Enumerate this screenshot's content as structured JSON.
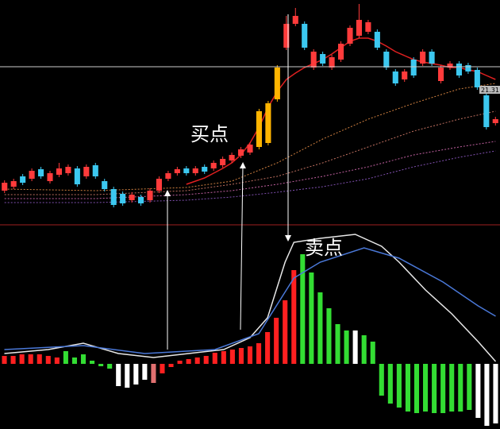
{
  "chart_data": [
    {
      "type": "candlestick",
      "annotations": [
        "买点",
        "21.31"
      ],
      "xlim": [
        -0.5,
        54.5
      ],
      "ylim": [
        0,
        280
      ],
      "open": [
        40,
        45,
        58,
        55,
        67,
        52,
        60,
        62,
        68,
        58,
        72,
        52,
        42,
        36,
        28,
        32,
        28,
        40,
        55,
        62,
        68,
        62,
        70,
        68,
        72,
        78,
        84,
        88,
        95,
        100,
        155,
        220,
        250,
        250,
        195,
        212,
        195,
        205,
        225,
        235,
        240,
        240,
        215,
        190,
        180,
        205,
        200,
        215,
        178,
        195,
        200,
        198,
        192,
        160,
        125
      ],
      "high": [
        53,
        55,
        61,
        68,
        70,
        65,
        75,
        73,
        71,
        73,
        75,
        55,
        45,
        39,
        38,
        35,
        43,
        58,
        65,
        70,
        71,
        71,
        73,
        78,
        83,
        88,
        95,
        101,
        143,
        153,
        198,
        260,
        270,
        253,
        218,
        215,
        211,
        228,
        248,
        275,
        255,
        243,
        218,
        193,
        193,
        208,
        218,
        218,
        198,
        203,
        203,
        201,
        195,
        163,
        133
      ],
      "low": [
        37,
        42,
        47,
        52,
        55,
        49,
        57,
        59,
        45,
        55,
        55,
        39,
        19,
        21,
        25,
        21,
        25,
        37,
        52,
        59,
        59,
        59,
        61,
        65,
        69,
        75,
        81,
        85,
        92,
        97,
        152,
        217,
        247,
        217,
        192,
        197,
        192,
        202,
        222,
        232,
        237,
        217,
        192,
        172,
        177,
        182,
        197,
        197,
        175,
        192,
        182,
        187,
        167,
        117,
        122
      ],
      "close": [
        50,
        52,
        50,
        65,
        58,
        62,
        68,
        70,
        48,
        70,
        58,
        42,
        22,
        24,
        35,
        24,
        40,
        55,
        62,
        67,
        62,
        68,
        64,
        75,
        80,
        85,
        92,
        98,
        140,
        150,
        195,
        250,
        260,
        220,
        215,
        200,
        208,
        225,
        245,
        255,
        252,
        220,
        195,
        175,
        190,
        185,
        215,
        200,
        195,
        200,
        185,
        190,
        170,
        120,
        130
      ],
      "colors": [
        "#ff3b3b",
        "#ff3b3b",
        "#3cc8f0",
        "#ff3b3b",
        "#3cc8f0",
        "#ff3b3b",
        "#ff3b3b",
        "#ff3b3b",
        "#3cc8f0",
        "#ff3b3b",
        "#3cc8f0",
        "#3cc8f0",
        "#3cc8f0",
        "#3cc8f0",
        "#ff3b3b",
        "#3cc8f0",
        "#ff3b3b",
        "#ff3b3b",
        "#ff3b3b",
        "#ff3b3b",
        "#3cc8f0",
        "#ff3b3b",
        "#3cc8f0",
        "#ff3b3b",
        "#ff3b3b",
        "#ff3b3b",
        "#ff3b3b",
        "#ff3b3b",
        "#ffb400",
        "#ffb400",
        "#ffb400",
        "#ff3b3b",
        "#ff3b3b",
        "#3cc8f0",
        "#ff3b3b",
        "#3cc8f0",
        "#ff3b3b",
        "#ff3b3b",
        "#ff3b3b",
        "#ff3b3b",
        "#ff3b3b",
        "#3cc8f0",
        "#3cc8f0",
        "#3cc8f0",
        "#ff3b3b",
        "#3cc8f0",
        "#ff3b3b",
        "#3cc8f0",
        "#ff3b3b",
        "#ff3b3b",
        "#3cc8f0",
        "#3cc8f0",
        "#3cc8f0",
        "#3cc8f0",
        "#ff3b3b"
      ],
      "lines": [
        {
          "color": "#e02020",
          "dash": false,
          "x": [
            20,
            21,
            22,
            23,
            24,
            25,
            26,
            27,
            28,
            29,
            30,
            31,
            32,
            33,
            34,
            35,
            36,
            37,
            38,
            39,
            40,
            41,
            42,
            43,
            44,
            45,
            46,
            47,
            48,
            49,
            50,
            51,
            52,
            53,
            54
          ],
          "values": [
            48,
            52,
            56,
            62,
            68,
            75,
            85,
            100,
            120,
            145,
            165,
            180,
            188,
            195,
            200,
            205,
            212,
            220,
            228,
            232,
            232,
            228,
            222,
            215,
            210,
            205,
            202,
            200,
            198,
            195,
            195,
            192,
            190,
            185,
            180
          ]
        },
        {
          "color": "#d08040",
          "dash": true,
          "x": [
            0,
            10,
            20,
            25,
            30,
            35,
            40,
            45,
            50,
            54
          ],
          "values": [
            42,
            40,
            44,
            52,
            75,
            105,
            130,
            150,
            168,
            175
          ]
        },
        {
          "color": "#c07060",
          "dash": true,
          "x": [
            0,
            10,
            20,
            25,
            30,
            35,
            40,
            45,
            50,
            54
          ],
          "values": [
            35,
            35,
            40,
            48,
            58,
            75,
            95,
            115,
            130,
            140
          ]
        },
        {
          "color": "#c060a0",
          "dash": true,
          "x": [
            0,
            10,
            20,
            25,
            30,
            35,
            40,
            45,
            50,
            54
          ],
          "values": [
            30,
            30,
            35,
            40,
            48,
            58,
            70,
            85,
            95,
            102
          ]
        },
        {
          "color": "#8050b0",
          "dash": true,
          "x": [
            0,
            10,
            20,
            25,
            30,
            35,
            40,
            45,
            50,
            54
          ],
          "values": [
            25,
            25,
            28,
            32,
            38,
            45,
            55,
            70,
            82,
            90
          ]
        }
      ]
    },
    {
      "type": "bar",
      "annotations": [
        "卖点"
      ],
      "xlim": [
        -0.5,
        56.5
      ],
      "ylim": [
        -82,
        173
      ],
      "values": [
        10,
        10,
        12,
        12,
        12,
        10,
        8,
        16,
        8,
        12,
        4,
        -3,
        -6,
        -28,
        -30,
        -26,
        -20,
        -24,
        -12,
        -4,
        4,
        6,
        8,
        10,
        14,
        16,
        18,
        20,
        22,
        26,
        40,
        58,
        80,
        118,
        138,
        115,
        90,
        70,
        50,
        42,
        42,
        36,
        28,
        -40,
        -50,
        -55,
        -60,
        -62,
        -60,
        -62,
        -62,
        -60,
        -60,
        -58,
        -68,
        -78,
        -75
      ],
      "colors": [
        "#ff2020",
        "#ff2020",
        "#ff2020",
        "#ff2020",
        "#ff2020",
        "#ff2020",
        "#ff2020",
        "#33dd33",
        "#33dd33",
        "#33dd33",
        "#33dd33",
        "#33dd33",
        "#33dd33",
        "#ffffff",
        "#ffffff",
        "#ffffff",
        "#ffffff",
        "#e07070",
        "#ff2020",
        "#ff2020",
        "#ff2020",
        "#ff2020",
        "#ff2020",
        "#ff2020",
        "#ff2020",
        "#ff2020",
        "#ff2020",
        "#ff2020",
        "#ff2020",
        "#ff2020",
        "#ff2020",
        "#ff2020",
        "#ff2020",
        "#ff2020",
        "#33dd33",
        "#33dd33",
        "#33dd33",
        "#33dd33",
        "#33dd33",
        "#33dd33",
        "#ffffff",
        "#33dd33",
        "#33dd33",
        "#33dd33",
        "#33dd33",
        "#33dd33",
        "#33dd33",
        "#33dd33",
        "#33dd33",
        "#33dd33",
        "#33dd33",
        "#33dd33",
        "#33dd33",
        "#33dd33",
        "#ffffff",
        "#ffffff",
        "#ffffff"
      ],
      "lines": [
        {
          "color": "#e8e8e8",
          "dash": false,
          "x": [
            0,
            5,
            9,
            13,
            17,
            21,
            25,
            28,
            30,
            32,
            33,
            36,
            40,
            43,
            45,
            48,
            51,
            54,
            56
          ],
          "values": [
            13,
            18,
            26,
            13,
            8,
            13,
            18,
            33,
            58,
            128,
            153,
            158,
            163,
            148,
            128,
            93,
            63,
            28,
            3
          ]
        },
        {
          "color": "#4a78d8",
          "dash": false,
          "x": [
            0,
            9,
            16,
            24,
            29,
            33,
            36,
            41,
            45,
            50,
            54,
            56
          ],
          "values": [
            18,
            23,
            13,
            18,
            38,
            108,
            128,
            146,
            133,
            103,
            73,
            60
          ]
        }
      ]
    }
  ]
}
